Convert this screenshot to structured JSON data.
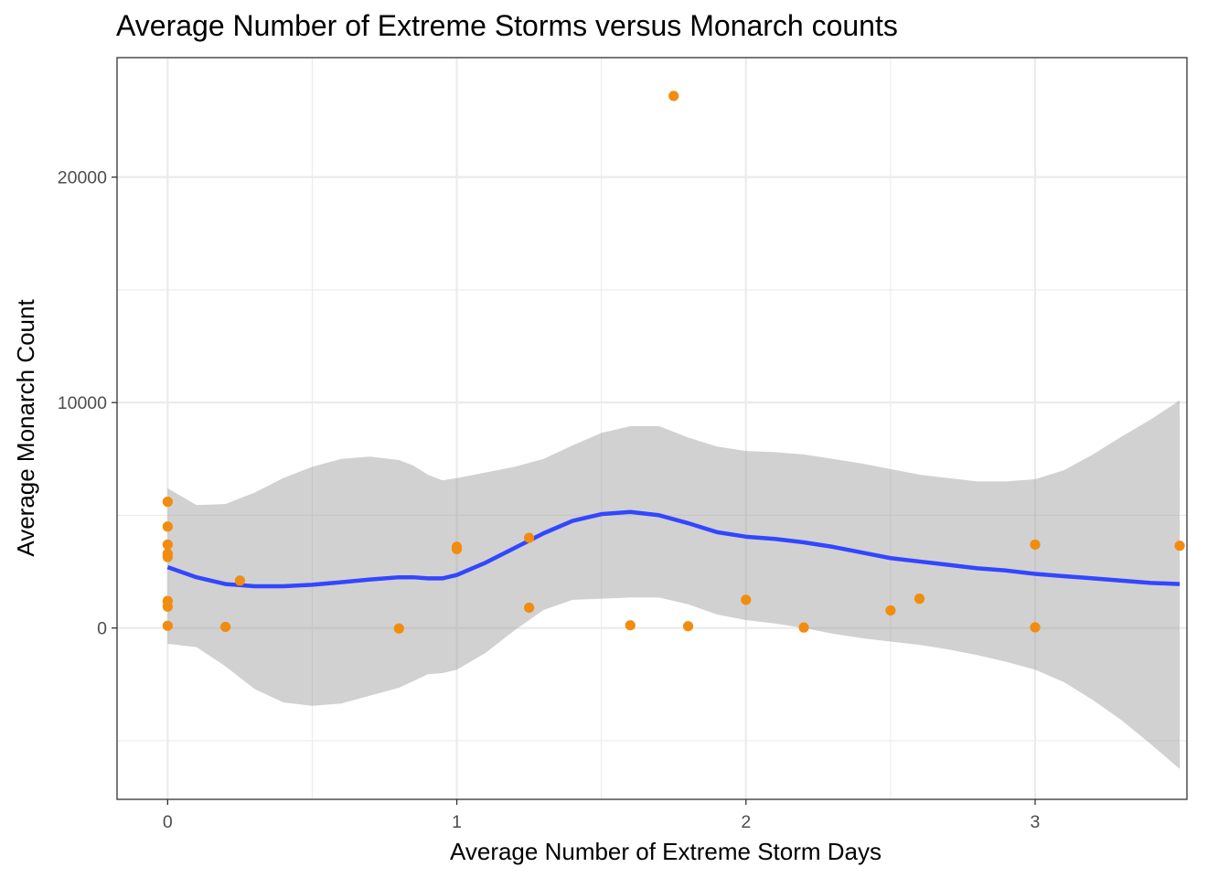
{
  "chart_data": {
    "type": "scatter",
    "title": "Average Number of Extreme Storms versus Monarch counts",
    "xlabel": "Average Number of Extreme Storm Days",
    "ylabel": "Average Monarch Count",
    "xlim": [
      -0.175,
      3.525
    ],
    "ylim": [
      -7600,
      25300
    ],
    "x_ticks": [
      0,
      1,
      2,
      3
    ],
    "x_tick_labels": [
      "0",
      "1",
      "2",
      "3"
    ],
    "x_minor_ticks": [
      0.5,
      1.5,
      2.5
    ],
    "y_ticks": [
      0,
      10000,
      20000
    ],
    "y_tick_labels": [
      "0",
      "10000",
      "20000"
    ],
    "y_minor_ticks": [
      -5000,
      5000,
      15000
    ],
    "grid": true,
    "legend": "none",
    "colors": {
      "points": "#f28c0f",
      "smooth_line": "#3346ff",
      "confidence_band": "#999999",
      "panel_border": "#333333",
      "grid": "#ebebeb"
    },
    "series": [
      {
        "type": "scatter",
        "points": [
          {
            "x": 0,
            "y": 5600
          },
          {
            "x": 0,
            "y": 4500
          },
          {
            "x": 0,
            "y": 3700
          },
          {
            "x": 0,
            "y": 3300
          },
          {
            "x": 0,
            "y": 3150
          },
          {
            "x": 0,
            "y": 1200
          },
          {
            "x": 0,
            "y": 950
          },
          {
            "x": 0,
            "y": 100
          },
          {
            "x": 0.2,
            "y": 50
          },
          {
            "x": 0.25,
            "y": 2100
          },
          {
            "x": 0.8,
            "y": -20
          },
          {
            "x": 1,
            "y": 3600
          },
          {
            "x": 1,
            "y": 3500
          },
          {
            "x": 1.25,
            "y": 4000
          },
          {
            "x": 1.25,
            "y": 900
          },
          {
            "x": 1.6,
            "y": 120
          },
          {
            "x": 1.75,
            "y": 23600
          },
          {
            "x": 1.8,
            "y": 80
          },
          {
            "x": 2,
            "y": 1250
          },
          {
            "x": 2.2,
            "y": 20
          },
          {
            "x": 2.5,
            "y": 780
          },
          {
            "x": 2.6,
            "y": 1300
          },
          {
            "x": 3,
            "y": 3700
          },
          {
            "x": 3,
            "y": 30
          },
          {
            "x": 3.5,
            "y": 3650
          }
        ]
      },
      {
        "type": "smooth",
        "x": [
          0,
          0.1,
          0.2,
          0.3,
          0.4,
          0.5,
          0.6,
          0.7,
          0.8,
          0.85,
          0.9,
          0.95,
          1.0,
          1.1,
          1.2,
          1.3,
          1.4,
          1.5,
          1.6,
          1.7,
          1.8,
          1.9,
          2.0,
          2.1,
          2.2,
          2.3,
          2.4,
          2.5,
          2.6,
          2.7,
          2.8,
          2.9,
          3.0,
          3.1,
          3.2,
          3.3,
          3.4,
          3.5
        ],
        "y": [
          2700,
          2250,
          1950,
          1850,
          1850,
          1920,
          2030,
          2150,
          2250,
          2250,
          2200,
          2200,
          2350,
          2900,
          3550,
          4200,
          4750,
          5050,
          5150,
          5000,
          4650,
          4250,
          4050,
          3950,
          3800,
          3600,
          3350,
          3100,
          2950,
          2800,
          2650,
          2550,
          2400,
          2300,
          2200,
          2100,
          2000,
          1950
        ],
        "upper": [
          6200,
          5450,
          5500,
          6000,
          6650,
          7150,
          7500,
          7600,
          7450,
          7200,
          6800,
          6550,
          6650,
          6900,
          7150,
          7500,
          8100,
          8650,
          8950,
          8950,
          8450,
          8050,
          7850,
          7800,
          7700,
          7500,
          7300,
          7050,
          6800,
          6650,
          6500,
          6500,
          6600,
          7000,
          7700,
          8500,
          9250,
          10100
        ],
        "lower": [
          -700,
          -850,
          -1700,
          -2700,
          -3300,
          -3450,
          -3350,
          -3000,
          -2650,
          -2350,
          -2050,
          -2000,
          -1850,
          -1100,
          -100,
          800,
          1250,
          1300,
          1350,
          1350,
          1050,
          600,
          350,
          200,
          0,
          -250,
          -450,
          -600,
          -750,
          -950,
          -1200,
          -1500,
          -1850,
          -2400,
          -3200,
          -4100,
          -5150,
          -6250
        ]
      }
    ]
  }
}
